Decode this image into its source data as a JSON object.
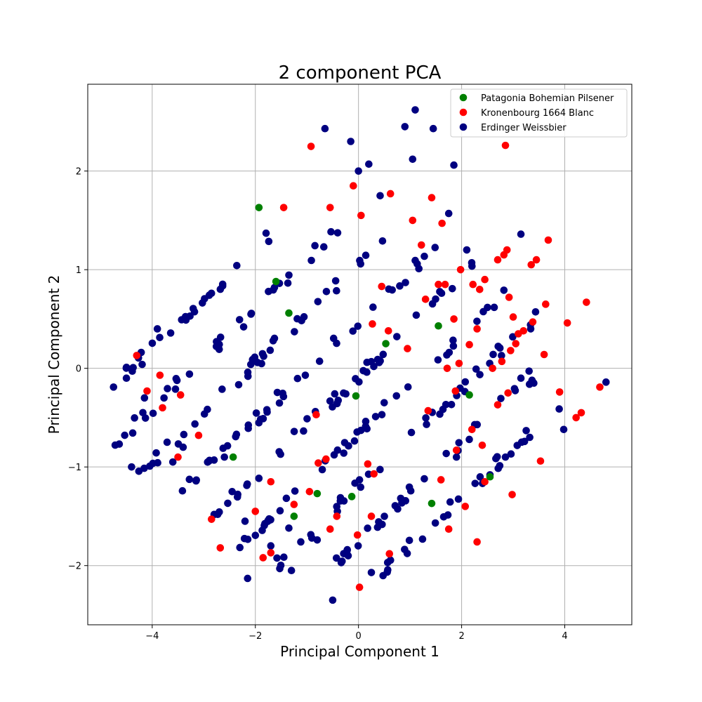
{
  "chart_data": {
    "type": "scatter",
    "title": "2 component PCA",
    "xlabel": "Principal Component 1",
    "ylabel": "Principal Component 2",
    "xlim": [
      -5.25,
      5.3
    ],
    "ylim": [
      -2.6,
      2.88
    ],
    "xticks": [
      -4,
      -2,
      0,
      2,
      4
    ],
    "yticks": [
      -2,
      -1,
      0,
      1,
      2
    ],
    "xtick_labels": [
      "−4",
      "−2",
      "0",
      "2",
      "4"
    ],
    "ytick_labels": [
      "−2",
      "−1",
      "0",
      "1",
      "2"
    ],
    "grid": true,
    "legend_position": "top-right",
    "series": [
      {
        "name": "Patagonia Bohemian Pilsener",
        "color": "#008000",
        "points": [
          [
            -1.93,
            1.63
          ],
          [
            -1.6,
            0.88
          ],
          [
            -1.35,
            0.56
          ],
          [
            -2.43,
            -0.9
          ],
          [
            -1.25,
            -1.5
          ],
          [
            -0.8,
            -1.27
          ],
          [
            -0.13,
            -1.3
          ],
          [
            -0.05,
            -0.28
          ],
          [
            0.53,
            0.25
          ],
          [
            1.55,
            0.43
          ],
          [
            1.42,
            -1.37
          ],
          [
            2.55,
            -1.1
          ],
          [
            2.15,
            -0.27
          ]
        ]
      },
      {
        "name": "Kronenbourg 1664 Blanc",
        "color": "#ff0000",
        "points": [
          [
            -4.3,
            0.13
          ],
          [
            -4.1,
            -0.23
          ],
          [
            -3.85,
            -0.07
          ],
          [
            -3.5,
            -0.9
          ],
          [
            -3.45,
            -0.27
          ],
          [
            -3.8,
            -0.4
          ],
          [
            -3.1,
            -0.68
          ],
          [
            -2.85,
            -1.53
          ],
          [
            -2.68,
            -1.82
          ],
          [
            -2.0,
            -1.45
          ],
          [
            -1.85,
            -1.92
          ],
          [
            -1.7,
            -1.87
          ],
          [
            -1.7,
            -1.15
          ],
          [
            -1.45,
            1.63
          ],
          [
            -0.92,
            2.25
          ],
          [
            -0.55,
            1.63
          ],
          [
            -1.25,
            -1.38
          ],
          [
            -0.95,
            -1.25
          ],
          [
            -0.78,
            -0.96
          ],
          [
            -0.42,
            -1.5
          ],
          [
            -0.55,
            -1.63
          ],
          [
            -0.02,
            -1.69
          ],
          [
            0.02,
            -2.22
          ],
          [
            0.18,
            -0.97
          ],
          [
            0.3,
            -1.07
          ],
          [
            0.25,
            -1.5
          ],
          [
            0.6,
            -1.88
          ],
          [
            0.45,
            0.83
          ],
          [
            0.58,
            0.38
          ],
          [
            0.62,
            1.77
          ],
          [
            0.27,
            0.45
          ],
          [
            0.05,
            1.55
          ],
          [
            -0.1,
            1.85
          ],
          [
            0.95,
            0.2
          ],
          [
            1.05,
            1.5
          ],
          [
            1.22,
            1.25
          ],
          [
            1.42,
            1.73
          ],
          [
            1.55,
            0.85
          ],
          [
            1.62,
            1.47
          ],
          [
            1.68,
            0.85
          ],
          [
            1.3,
            0.7
          ],
          [
            1.35,
            -0.43
          ],
          [
            1.72,
            0.0
          ],
          [
            1.85,
            0.5
          ],
          [
            1.95,
            0.05
          ],
          [
            1.98,
            1.0
          ],
          [
            1.88,
            -0.23
          ],
          [
            1.6,
            -1.13
          ],
          [
            1.75,
            -1.63
          ],
          [
            1.9,
            -0.83
          ],
          [
            2.07,
            -1.4
          ],
          [
            2.15,
            0.24
          ],
          [
            2.22,
            0.85
          ],
          [
            2.3,
            0.4
          ],
          [
            2.35,
            0.8
          ],
          [
            2.45,
            0.9
          ],
          [
            2.4,
            -0.78
          ],
          [
            2.2,
            -0.62
          ],
          [
            2.45,
            -1.15
          ],
          [
            2.3,
            -1.76
          ],
          [
            2.6,
            0.0
          ],
          [
            2.7,
            1.1
          ],
          [
            2.78,
            0.07
          ],
          [
            2.82,
            1.15
          ],
          [
            2.88,
            1.2
          ],
          [
            2.85,
            2.26
          ],
          [
            2.92,
            0.72
          ],
          [
            3.0,
            0.52
          ],
          [
            3.05,
            0.25
          ],
          [
            2.95,
            0.18
          ],
          [
            3.1,
            0.35
          ],
          [
            3.2,
            0.38
          ],
          [
            3.35,
            1.05
          ],
          [
            3.38,
            0.47
          ],
          [
            3.45,
            1.1
          ],
          [
            3.68,
            1.3
          ],
          [
            3.63,
            0.65
          ],
          [
            3.6,
            0.14
          ],
          [
            2.98,
            -1.28
          ],
          [
            3.53,
            -0.94
          ],
          [
            3.9,
            -0.24
          ],
          [
            4.05,
            0.46
          ],
          [
            4.22,
            -0.5
          ],
          [
            4.32,
            -0.45
          ],
          [
            4.42,
            0.67
          ],
          [
            4.68,
            -0.19
          ],
          [
            2.9,
            -0.25
          ],
          [
            2.7,
            -0.37
          ],
          [
            -0.63,
            -0.92
          ],
          [
            -0.82,
            -0.47
          ]
        ]
      },
      {
        "name": "Erdinger Weissbier",
        "color": "#000080",
        "points": []
      }
    ],
    "band_lines": {
      "series_index": 2,
      "slope": 0.5,
      "segments": [
        {
          "y_intercept": 2.2,
          "x_range": [
            -4.75,
            -1.6
          ],
          "n": 26
        },
        {
          "y_intercept": 1.6,
          "x_range": [
            -4.75,
            -0.2
          ],
          "n": 34
        },
        {
          "y_intercept": 1.05,
          "x_range": [
            -4.3,
            0.6
          ],
          "n": 38
        },
        {
          "y_intercept": 0.48,
          "x_range": [
            -3.6,
            1.7
          ],
          "n": 40
        },
        {
          "y_intercept": -0.08,
          "x_range": [
            -2.8,
            2.4
          ],
          "n": 42
        },
        {
          "y_intercept": -0.66,
          "x_range": [
            -2.3,
            3.0
          ],
          "n": 42
        },
        {
          "y_intercept": -1.2,
          "x_range": [
            -1.6,
            3.6
          ],
          "n": 40
        },
        {
          "y_intercept": -1.75,
          "x_range": [
            -0.6,
            3.4
          ],
          "n": 32
        },
        {
          "y_intercept": -2.3,
          "x_range": [
            0.1,
            4.0
          ],
          "n": 28
        }
      ],
      "extra_points": [
        [
          -4.75,
          -0.19
        ],
        [
          -4.5,
          -0.1
        ],
        [
          -4.4,
          -1.0
        ],
        [
          -4.15,
          -0.3
        ],
        [
          -3.9,
          0.4
        ],
        [
          -3.6,
          -0.95
        ],
        [
          -3.4,
          -0.8
        ],
        [
          -2.8,
          -0.93
        ],
        [
          -2.6,
          -0.9
        ],
        [
          -2.45,
          -1.25
        ],
        [
          -2.2,
          -1.55
        ],
        [
          -2.15,
          -2.13
        ],
        [
          -1.7,
          -1.8
        ],
        [
          -1.3,
          -2.05
        ],
        [
          -1.35,
          -1.62
        ],
        [
          -0.8,
          -1.74
        ],
        [
          -0.5,
          -2.35
        ],
        [
          -0.2,
          -1.9
        ],
        [
          0.25,
          -2.07
        ],
        [
          -0.65,
          2.43
        ],
        [
          -0.15,
          2.3
        ],
        [
          0.0,
          2.0
        ],
        [
          0.2,
          2.07
        ],
        [
          0.42,
          1.75
        ],
        [
          0.9,
          2.45
        ],
        [
          1.1,
          2.62
        ],
        [
          1.45,
          2.43
        ],
        [
          1.05,
          2.12
        ],
        [
          1.85,
          2.06
        ],
        [
          1.75,
          1.57
        ],
        [
          2.1,
          1.2
        ],
        [
          3.15,
          1.36
        ],
        [
          3.15,
          -0.1
        ],
        [
          3.4,
          -0.15
        ],
        [
          3.98,
          -0.62
        ],
        [
          4.8,
          -0.14
        ],
        [
          2.85,
          -0.9
        ],
        [
          2.55,
          -1.08
        ],
        [
          1.9,
          -0.9
        ]
      ]
    }
  }
}
